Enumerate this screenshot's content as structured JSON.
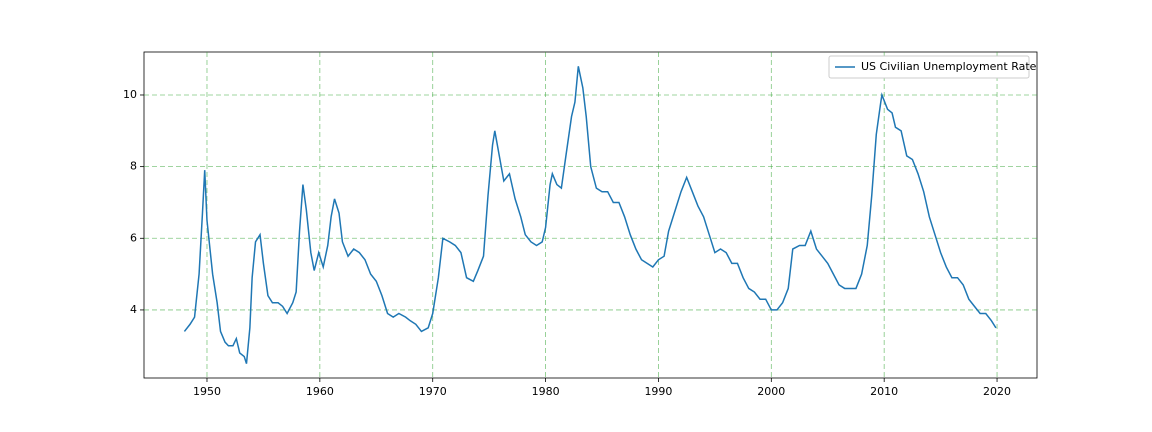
{
  "chart_data": {
    "type": "line",
    "x": [
      1948.0,
      1948.5,
      1948.9,
      1949.3,
      1949.6,
      1949.8,
      1950.0,
      1950.5,
      1950.9,
      1951.2,
      1951.6,
      1951.9,
      1952.3,
      1952.6,
      1952.9,
      1953.3,
      1953.5,
      1953.8,
      1954.0,
      1954.3,
      1954.7,
      1955.0,
      1955.4,
      1955.8,
      1956.3,
      1956.7,
      1957.1,
      1957.6,
      1957.9,
      1958.2,
      1958.5,
      1958.8,
      1959.2,
      1959.5,
      1959.9,
      1960.3,
      1960.7,
      1961.0,
      1961.3,
      1961.7,
      1962.0,
      1962.5,
      1963.0,
      1963.5,
      1964.0,
      1964.5,
      1965.0,
      1965.5,
      1966.0,
      1966.5,
      1967.0,
      1967.6,
      1968.0,
      1968.5,
      1969.0,
      1969.6,
      1970.0,
      1970.5,
      1970.9,
      1971.5,
      1972.0,
      1972.5,
      1973.0,
      1973.6,
      1974.0,
      1974.5,
      1974.9,
      1975.3,
      1975.5,
      1975.9,
      1976.3,
      1976.8,
      1977.3,
      1977.8,
      1978.2,
      1978.7,
      1979.2,
      1979.7,
      1980.0,
      1980.4,
      1980.6,
      1981.0,
      1981.4,
      1981.8,
      1982.3,
      1982.6,
      1982.9,
      1983.3,
      1983.6,
      1984.0,
      1984.5,
      1985.0,
      1985.5,
      1986.0,
      1986.5,
      1987.0,
      1987.5,
      1988.0,
      1988.5,
      1989.0,
      1989.5,
      1990.0,
      1990.5,
      1990.9,
      1991.5,
      1992.0,
      1992.5,
      1993.0,
      1993.5,
      1994.0,
      1994.5,
      1995.0,
      1995.5,
      1996.0,
      1996.5,
      1997.0,
      1997.5,
      1998.0,
      1998.5,
      1999.0,
      1999.5,
      2000.0,
      2000.5,
      2001.0,
      2001.5,
      2001.9,
      2002.5,
      2003.0,
      2003.5,
      2004.0,
      2004.5,
      2005.0,
      2005.5,
      2006.0,
      2006.5,
      2007.0,
      2007.5,
      2008.0,
      2008.5,
      2008.9,
      2009.3,
      2009.7,
      2009.8,
      2010.3,
      2010.7,
      2011.0,
      2011.5,
      2012.0,
      2012.5,
      2013.0,
      2013.5,
      2014.0,
      2014.5,
      2015.0,
      2015.5,
      2016.0,
      2016.5,
      2017.0,
      2017.5,
      2018.0,
      2018.5,
      2019.0,
      2019.5,
      2019.9
    ],
    "series": [
      {
        "name": "US Civilian Unemployment Rate",
        "color": "#1f77b4",
        "values": [
          3.4,
          3.6,
          3.8,
          5.0,
          6.7,
          7.9,
          6.5,
          5.0,
          4.2,
          3.4,
          3.1,
          3.0,
          3.0,
          3.2,
          2.8,
          2.7,
          2.5,
          3.5,
          4.9,
          5.9,
          6.1,
          5.3,
          4.4,
          4.2,
          4.2,
          4.1,
          3.9,
          4.2,
          4.5,
          6.2,
          7.5,
          6.8,
          5.6,
          5.1,
          5.6,
          5.2,
          5.8,
          6.6,
          7.1,
          6.7,
          5.9,
          5.5,
          5.7,
          5.6,
          5.4,
          5.0,
          4.8,
          4.4,
          3.9,
          3.8,
          3.9,
          3.8,
          3.7,
          3.6,
          3.4,
          3.5,
          3.9,
          4.9,
          6.0,
          5.9,
          5.8,
          5.6,
          4.9,
          4.8,
          5.1,
          5.5,
          7.2,
          8.6,
          9.0,
          8.3,
          7.6,
          7.8,
          7.1,
          6.6,
          6.1,
          5.9,
          5.8,
          5.9,
          6.3,
          7.5,
          7.8,
          7.5,
          7.4,
          8.3,
          9.4,
          9.8,
          10.8,
          10.2,
          9.4,
          8.0,
          7.4,
          7.3,
          7.3,
          7.0,
          7.0,
          6.6,
          6.1,
          5.7,
          5.4,
          5.3,
          5.2,
          5.4,
          5.5,
          6.2,
          6.8,
          7.3,
          7.7,
          7.3,
          6.9,
          6.6,
          6.1,
          5.6,
          5.7,
          5.6,
          5.3,
          5.3,
          4.9,
          4.6,
          4.5,
          4.3,
          4.3,
          4.0,
          4.0,
          4.2,
          4.6,
          5.7,
          5.8,
          5.8,
          6.2,
          5.7,
          5.5,
          5.3,
          5.0,
          4.7,
          4.6,
          4.6,
          4.6,
          5.0,
          5.8,
          7.2,
          8.9,
          9.8,
          10.0,
          9.6,
          9.5,
          9.1,
          9.0,
          8.3,
          8.2,
          7.8,
          7.3,
          6.6,
          6.1,
          5.6,
          5.2,
          4.9,
          4.9,
          4.7,
          4.3,
          4.1,
          3.9,
          3.9,
          3.7,
          3.5
        ]
      }
    ],
    "xlim": [
      1944.42,
      2023.54
    ],
    "xticks": [
      1950,
      1960,
      1970,
      1980,
      1990,
      2000,
      2010,
      2020
    ],
    "ylim": [
      2.1,
      11.2
    ],
    "yticks": [
      4,
      6,
      8,
      10
    ],
    "grid": true,
    "legend": "upper right"
  }
}
